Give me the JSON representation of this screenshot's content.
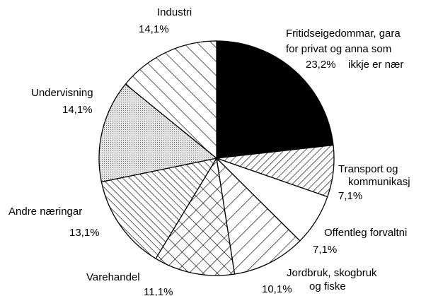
{
  "chart_data": {
    "type": "pie",
    "categories": [
      [
        "Fritidseigedommar, gara",
        "for privat og anna som",
        "ikkje er nær"
      ],
      [
        "Transport og",
        "kommunikasj"
      ],
      [
        "Offentleg forvaltni"
      ],
      [
        "Jordbruk, skogbruk",
        "og fiske"
      ],
      [
        "Varehandel"
      ],
      [
        "Andre næringar"
      ],
      [
        "Undervisning"
      ],
      [
        "Industri"
      ]
    ],
    "values": [
      23.2,
      7.1,
      7.1,
      10.1,
      11.1,
      13.1,
      14.1,
      14.1
    ],
    "value_labels": [
      "23,2%",
      "7,1%",
      "7,1%",
      "10,1%",
      "11,1%",
      "13,1%",
      "14,1%",
      "14,1%"
    ],
    "patterns": [
      "solid",
      "hatch-up-dense",
      "blank",
      "hatch-up-wide",
      "crosshatch",
      "hatch-down-dense",
      "dots",
      "hatch-down-wide"
    ]
  }
}
